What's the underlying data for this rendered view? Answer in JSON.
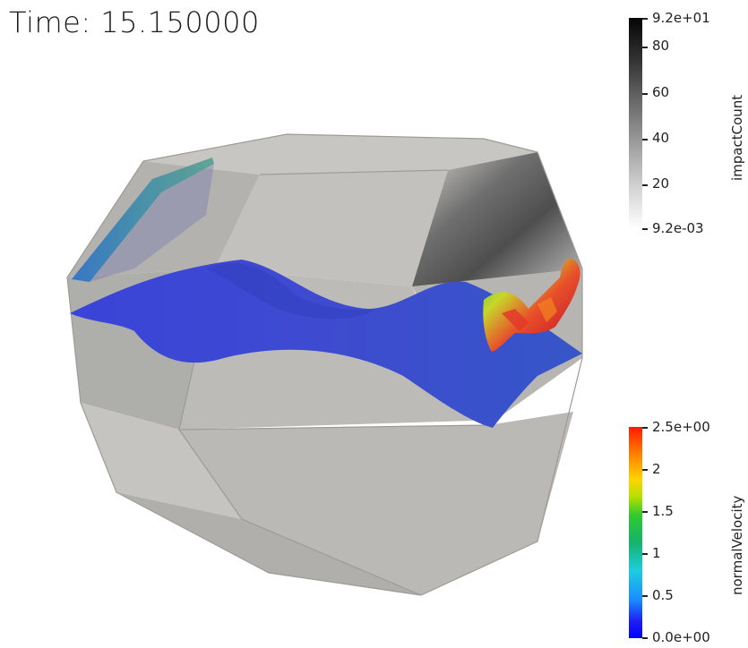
{
  "time_label": "Time: 15.150000",
  "colorbars": {
    "impact": {
      "title": "impactCount",
      "max_label": "9.2e+01",
      "min_label": "9.2e-03",
      "ticks": [
        "80",
        "60",
        "40",
        "20"
      ]
    },
    "velocity": {
      "title": "normalVelocity",
      "max_label": "2.5e+00",
      "min_label": "0.0e+00",
      "ticks": [
        "2",
        "1.5",
        "1",
        "0.5"
      ]
    }
  },
  "colors": {
    "background": "#ffffff",
    "surface_blue": "#3d4bd6",
    "shell_gray": "#b9b8b5"
  }
}
